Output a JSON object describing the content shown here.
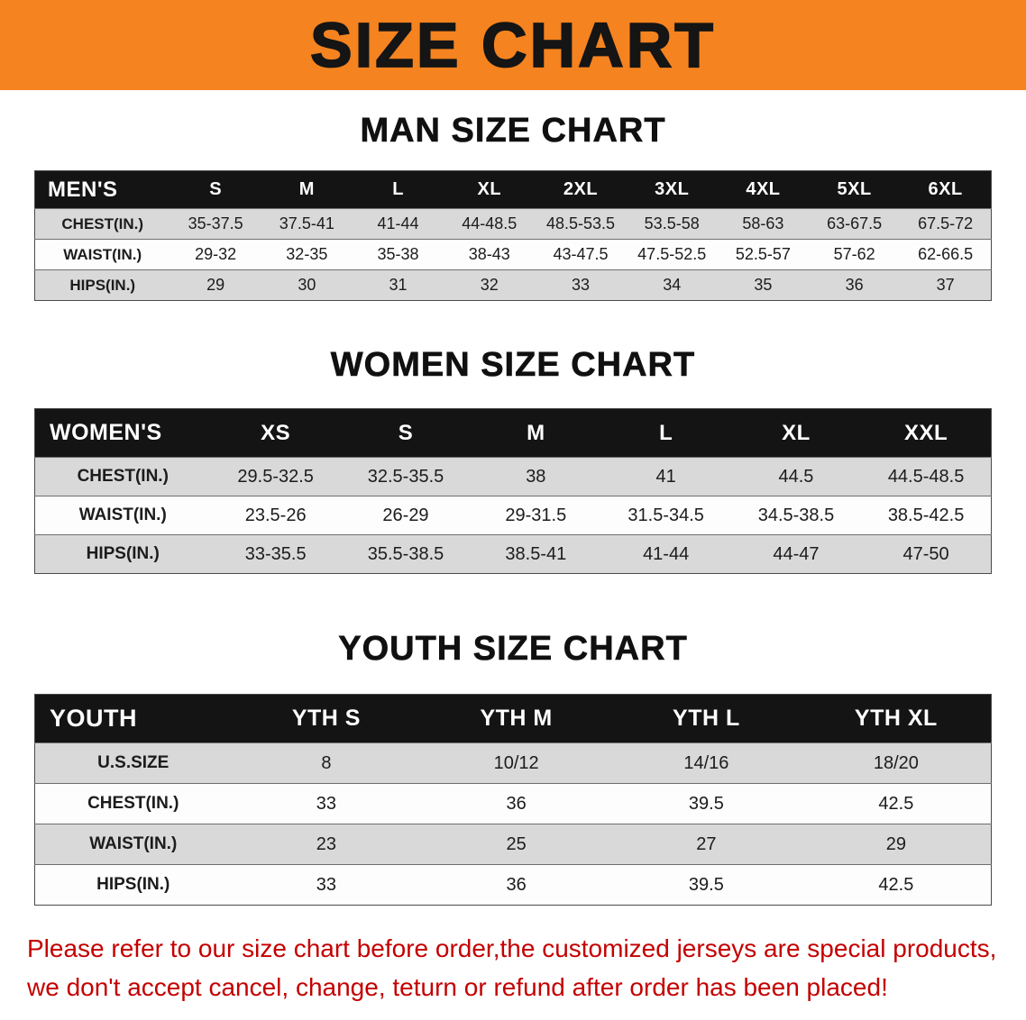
{
  "banner": {
    "title": "SIZE CHART",
    "bg_color": "#F5831F"
  },
  "chart_data": [
    {
      "type": "table",
      "title": "MAN SIZE CHART",
      "columns": [
        "MEN'S",
        "S",
        "M",
        "L",
        "XL",
        "2XL",
        "3XL",
        "4XL",
        "5XL",
        "6XL"
      ],
      "rows": [
        [
          "CHEST(IN.)",
          "35-37.5",
          "37.5-41",
          "41-44",
          "44-48.5",
          "48.5-53.5",
          "53.5-58",
          "58-63",
          "63-67.5",
          "67.5-72"
        ],
        [
          "WAIST(IN.)",
          "29-32",
          "32-35",
          "35-38",
          "38-43",
          "43-47.5",
          "47.5-52.5",
          "52.5-57",
          "57-62",
          "62-66.5"
        ],
        [
          "HIPS(IN.)",
          "29",
          "30",
          "31",
          "32",
          "33",
          "34",
          "35",
          "36",
          "37"
        ]
      ]
    },
    {
      "type": "table",
      "title": "WOMEN SIZE CHART",
      "columns": [
        "WOMEN'S",
        "XS",
        "S",
        "M",
        "L",
        "XL",
        "XXL"
      ],
      "rows": [
        [
          "CHEST(IN.)",
          "29.5-32.5",
          "32.5-35.5",
          "38",
          "41",
          "44.5",
          "44.5-48.5"
        ],
        [
          "WAIST(IN.)",
          "23.5-26",
          "26-29",
          "29-31.5",
          "31.5-34.5",
          "34.5-38.5",
          "38.5-42.5"
        ],
        [
          "HIPS(IN.)",
          "33-35.5",
          "35.5-38.5",
          "38.5-41",
          "41-44",
          "44-47",
          "47-50"
        ]
      ]
    },
    {
      "type": "table",
      "title": "YOUTH SIZE CHART",
      "columns": [
        "YOUTH",
        "YTH S",
        "YTH M",
        "YTH L",
        "YTH XL"
      ],
      "rows": [
        [
          "U.S.SIZE",
          "8",
          "10/12",
          "14/16",
          "18/20"
        ],
        [
          "CHEST(IN.)",
          "33",
          "36",
          "39.5",
          "42.5"
        ],
        [
          "WAIST(IN.)",
          "23",
          "25",
          "27",
          "29"
        ],
        [
          "HIPS(IN.)",
          "33",
          "36",
          "39.5",
          "42.5"
        ]
      ]
    }
  ],
  "footnote": {
    "line1": "Please refer to our size chart before order,the customized jerseys are special products,",
    "line2": "we don't accept cancel, change, teturn or refund after order has been placed!",
    "color": "#C40000"
  }
}
